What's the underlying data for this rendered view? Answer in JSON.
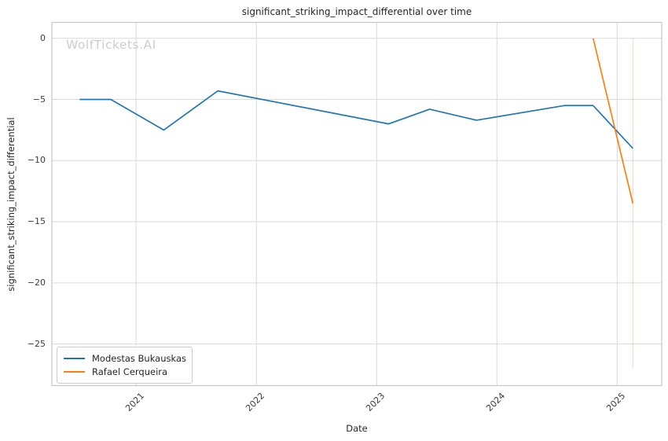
{
  "title": "significant_striking_impact_differential over time",
  "watermark": "WolfTickets.AI",
  "axes": {
    "xlabel": "Date",
    "ylabel": "significant_striking_impact_differential"
  },
  "legend": {
    "items": [
      {
        "label": "Modestas Bukauskas",
        "color": "#1f77b4"
      },
      {
        "label": "Rafael Cerqueira",
        "color": "#ff7f0e"
      }
    ]
  },
  "colors": {
    "grid": "#d9d9d9",
    "frame": "#c6c6c6",
    "tick_text": "#3b3b3b",
    "title_text": "#262626",
    "watermark_text": "#cdcdcd",
    "series_blue": "#1f77b4",
    "series_orange": "#ff7f0e"
  },
  "chart_data": {
    "type": "line",
    "title": "significant_striking_impact_differential over time",
    "xlabel": "Date",
    "ylabel": "significant_striking_impact_differential",
    "xlim": [
      2020.3,
      2025.37
    ],
    "ylim": [
      -28.4,
      1.3
    ],
    "grid": true,
    "legend_position": "lower left",
    "xticks": {
      "values": [
        2021,
        2022,
        2023,
        2024,
        2025
      ],
      "labels": [
        "2021",
        "2022",
        "2023",
        "2024",
        "2025"
      ]
    },
    "yticks": {
      "values": [
        0,
        -5,
        -10,
        -15,
        -20,
        -25
      ],
      "labels": [
        "0",
        "−5",
        "−10",
        "−15",
        "−20",
        "−25"
      ]
    },
    "series": [
      {
        "name": "Modestas Bukauskas",
        "color": "#1f77b4",
        "x": [
          2020.53,
          2020.79,
          2021.23,
          2021.68,
          2023.1,
          2023.44,
          2023.83,
          2024.56,
          2024.8,
          2025.13
        ],
        "y": [
          -5.0,
          -5.0,
          -7.5,
          -4.3,
          -7.0,
          -5.8,
          -6.7,
          -5.5,
          -5.5,
          -9.0
        ]
      },
      {
        "name": "Rafael Cerqueira",
        "color": "#ff7f0e",
        "x": [
          2024.8,
          2025.13
        ],
        "y": [
          0.0,
          -13.5
        ]
      }
    ],
    "annotations": [
      {
        "type": "vertical_range_line",
        "x": 2025.13,
        "y1": 0.0,
        "y2": -27.0,
        "color": "#ff7f0e",
        "alpha": 0.3
      }
    ]
  }
}
